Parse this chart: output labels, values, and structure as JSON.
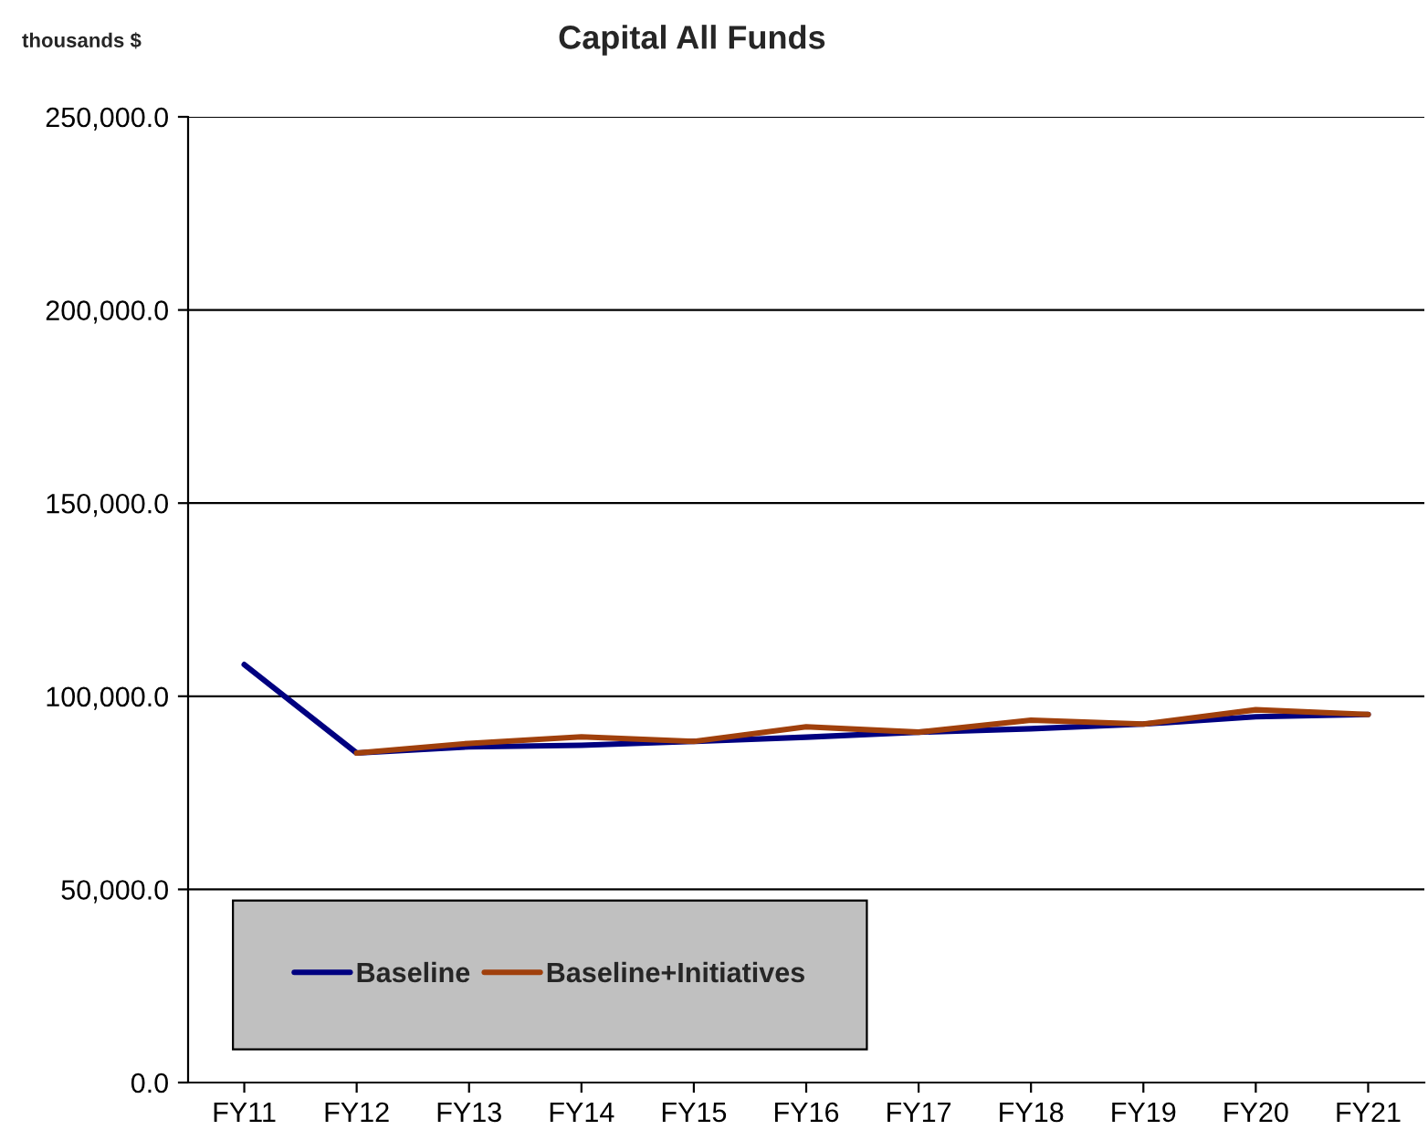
{
  "chart_data": {
    "type": "line",
    "title": "Capital All Funds",
    "ylabel": "thousands $",
    "categories": [
      "FY11",
      "FY12",
      "FY13",
      "FY14",
      "FY15",
      "FY16",
      "FY17",
      "FY18",
      "FY19",
      "FY20",
      "FY21"
    ],
    "series": [
      {
        "name": "Baseline",
        "color": "#000080",
        "values": [
          108200,
          85300,
          86900,
          87300,
          88300,
          89400,
          90700,
          91600,
          92800,
          94700,
          95300
        ]
      },
      {
        "name": "Baseline+Initiatives",
        "color": "#a0400c",
        "values": [
          null,
          85300,
          87800,
          89500,
          88300,
          92100,
          90700,
          93800,
          92800,
          96500,
          95300
        ]
      }
    ],
    "ylim": [
      0,
      250000
    ],
    "yticks": [
      {
        "value": 0,
        "label": "0.0"
      },
      {
        "value": 50000,
        "label": "50,000.0"
      },
      {
        "value": 100000,
        "label": "100,000.0"
      },
      {
        "value": 150000,
        "label": "150,000.0"
      },
      {
        "value": 200000,
        "label": "200,000.0"
      },
      {
        "value": 250000,
        "label": "250,000.0"
      }
    ],
    "grid": "y",
    "legend": "bottom left",
    "marker": "none",
    "line_style": "solid"
  }
}
